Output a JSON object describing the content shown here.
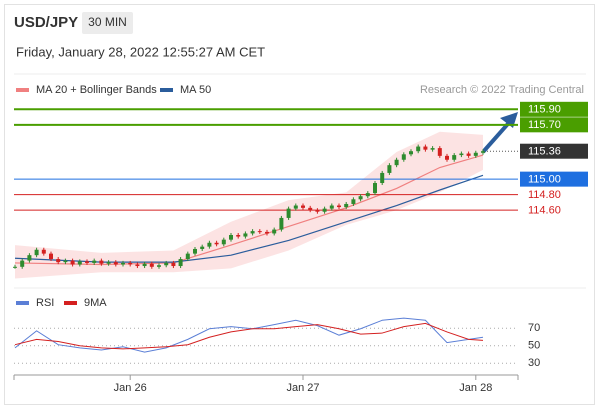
{
  "header": {
    "symbol": "USD/JPY",
    "interval": "30 MIN",
    "datetime": "Friday, January 28, 2022 12:55:27 AM CET"
  },
  "chart_data": [
    {
      "type": "candlestick",
      "credit": "Research © 2022 Trading Central",
      "categories": [
        null,
        null,
        null,
        null,
        null,
        null,
        null,
        null,
        null,
        null,
        null,
        null,
        null,
        null,
        null,
        null,
        "Jan 26",
        null,
        null,
        null,
        null,
        null,
        null,
        null,
        null,
        null,
        null,
        null,
        null,
        null,
        null,
        null,
        null,
        null,
        null,
        null,
        null,
        null,
        null,
        null,
        "Jan 27",
        null,
        null,
        null,
        null,
        null,
        null,
        null,
        null,
        null,
        null,
        null,
        null,
        null,
        null,
        null,
        null,
        null,
        null,
        null,
        null,
        null,
        null,
        null,
        "Jan 28",
        null
      ],
      "close": [
        113.87,
        113.95,
        114.02,
        114.09,
        114.04,
        113.97,
        113.93,
        113.95,
        113.9,
        113.94,
        113.92,
        113.95,
        113.91,
        113.93,
        113.9,
        113.92,
        113.9,
        113.88,
        113.91,
        113.87,
        113.89,
        113.92,
        113.88,
        113.97,
        114.04,
        114.1,
        114.13,
        114.18,
        114.16,
        114.22,
        114.28,
        114.26,
        114.3,
        114.33,
        114.32,
        114.3,
        114.35,
        114.5,
        114.62,
        114.66,
        114.63,
        114.6,
        114.58,
        114.62,
        114.66,
        114.64,
        114.68,
        114.74,
        114.78,
        114.82,
        114.95,
        115.08,
        115.18,
        115.25,
        115.32,
        115.36,
        115.42,
        115.38,
        115.4,
        115.3,
        115.25,
        115.31,
        115.33,
        115.3,
        115.34,
        115.36
      ],
      "up_color": "#2e8b2e",
      "down_color": "#d42020",
      "ylim": [
        113.7,
        116.02
      ],
      "series": [
        {
          "name": "MA 20 + Bollinger Bands",
          "color": "#f08080",
          "band_color": "#fbdcdc",
          "x": [
            0,
            12,
            22,
            30,
            38,
            46,
            53,
            59,
            65
          ],
          "values": [
            113.92,
            113.9,
            113.92,
            114.15,
            114.39,
            114.63,
            114.88,
            115.15,
            115.31
          ],
          "upper": [
            114.15,
            114.05,
            114.08,
            114.45,
            114.73,
            114.83,
            115.35,
            115.61,
            115.57
          ],
          "lower": [
            113.72,
            113.8,
            113.8,
            113.85,
            114.08,
            114.41,
            114.6,
            114.83,
            115.12
          ]
        },
        {
          "name": "MA 50",
          "color": "#2b5d9c",
          "x": [
            0,
            12,
            22,
            30,
            38,
            46,
            53,
            59,
            65
          ],
          "values": [
            113.98,
            113.93,
            113.93,
            114.02,
            114.21,
            114.45,
            114.66,
            114.86,
            115.05
          ]
        }
      ],
      "levels": [
        {
          "value": 115.9,
          "label": "115.90",
          "color": "#4a9e00",
          "style": "box",
          "line": "solid"
        },
        {
          "value": 115.7,
          "label": "115.70",
          "color": "#4a9e00",
          "style": "box",
          "line": "solid"
        },
        {
          "value": 115.36,
          "label": "115.36",
          "color": "#333333",
          "style": "box",
          "line": "dotted"
        },
        {
          "value": 115,
          "label": "115.00",
          "color": "#1e6fe0",
          "style": "box",
          "line": "solid"
        },
        {
          "value": 114.8,
          "label": "114.80",
          "color": "#d42020",
          "style": "text",
          "line": "solid"
        },
        {
          "value": 114.6,
          "label": "114.60",
          "color": "#d42020",
          "style": "text",
          "line": "solid"
        }
      ]
    },
    {
      "type": "line",
      "ylim": [
        20,
        84
      ],
      "yticks": [
        70,
        50,
        30
      ],
      "series": [
        {
          "name": "RSI",
          "color": "#5b7fd6",
          "x": [
            0,
            3,
            6,
            9,
            12,
            15,
            18,
            21,
            24,
            27,
            30,
            33,
            36,
            39,
            42,
            45,
            48,
            51,
            54,
            57,
            60,
            63,
            65
          ],
          "values": [
            47.6,
            67,
            51.2,
            47.6,
            45.2,
            48.8,
            42.7,
            47.6,
            57.3,
            69.4,
            71.8,
            69.4,
            74.2,
            79.1,
            73,
            62.1,
            69.4,
            79.1,
            81.5,
            79.1,
            53.6,
            57.3,
            59.7
          ]
        },
        {
          "name": "9MA",
          "color": "#d42020",
          "x": [
            0,
            3,
            6,
            9,
            12,
            15,
            18,
            21,
            24,
            27,
            30,
            33,
            36,
            39,
            42,
            45,
            48,
            51,
            54,
            57,
            60,
            63,
            65
          ],
          "values": [
            51.2,
            57.3,
            54.8,
            50,
            47.6,
            46.4,
            47.6,
            48.8,
            51.2,
            59.7,
            65.8,
            69.4,
            69.4,
            71.8,
            74.2,
            69.4,
            63.3,
            64.5,
            71.8,
            75.5,
            65.8,
            57.3,
            56.1
          ]
        }
      ]
    }
  ]
}
